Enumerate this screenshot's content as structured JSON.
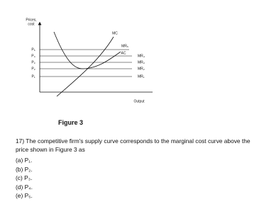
{
  "figure": {
    "y_axis_label": [
      "Prices,",
      "cost"
    ],
    "price_labels": [
      "P₅",
      "P₄",
      "P₃",
      "P₂",
      "P₁"
    ],
    "mc_label": "MC",
    "ac_label": "AC",
    "mr_labels": [
      "MR₅",
      "MR₄",
      "MR₃",
      "MR₂",
      "MR₁"
    ],
    "x_axis_label": "Output",
    "caption": "Figure 3"
  },
  "question": {
    "text": "17) The competitive firm's supply curve corresponds to the marginal cost curve above the price shown in Figure 3 as",
    "options": [
      "(a) P₁.",
      "(b) P₂.",
      "(c) P₃.",
      "(d) P₄.",
      "(e) P₅."
    ]
  }
}
